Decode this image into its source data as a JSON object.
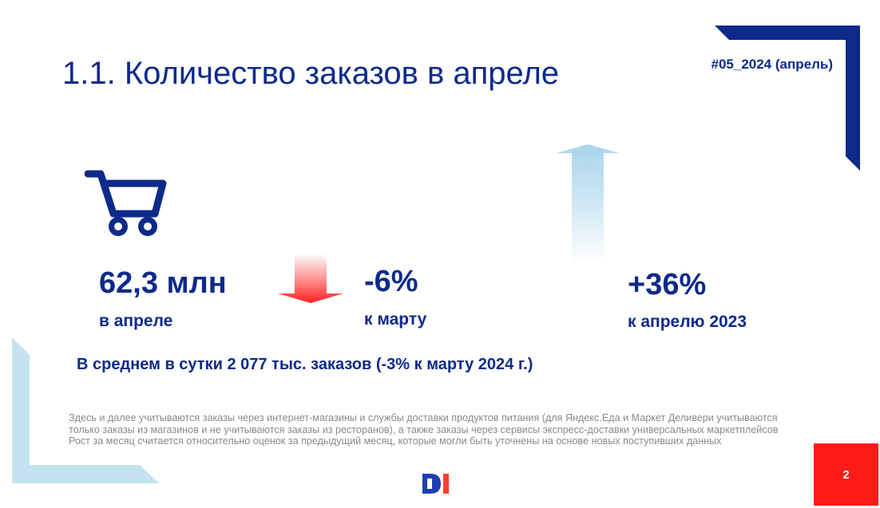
{
  "slide": {
    "title": "1.1. Количество заказов в апреле",
    "tag": "#05_2024 (апрель)",
    "page_number": "2"
  },
  "metrics": {
    "total": {
      "value": "62,3 млн",
      "label": "в апреле",
      "icon": "shopping-cart-icon"
    },
    "vs_march": {
      "value": "-6%",
      "label": "к марту",
      "trend": "down"
    },
    "vs_april_2023": {
      "value": "+36%",
      "label": "к апрелю 2023",
      "trend": "up"
    }
  },
  "daily_note": "В среднем в сутки 2 077 тыс. заказов (-3% к марту 2024 г.)",
  "footnote": {
    "line1": "Здесь и далее учитываются заказы через интернет-магазины и службы доставки продуктов питания (для Яндекс.Еда и Маркет Деливери учитываются только заказы из магазинов и не учитываются заказы из ресторанов), а также заказы через сервисы экспресс-доставки универсальных маркетплейсов",
    "line2": "Рост за месяц считается относительно оценок за предыдущий месяц, которые могли быть уточнены на основе новых поступивших данных"
  },
  "colors": {
    "navy": "#0d2a8a",
    "light_blue": "#c5e2f0",
    "red": "#ff1a1a",
    "grey_text": "#8a8a8a"
  }
}
